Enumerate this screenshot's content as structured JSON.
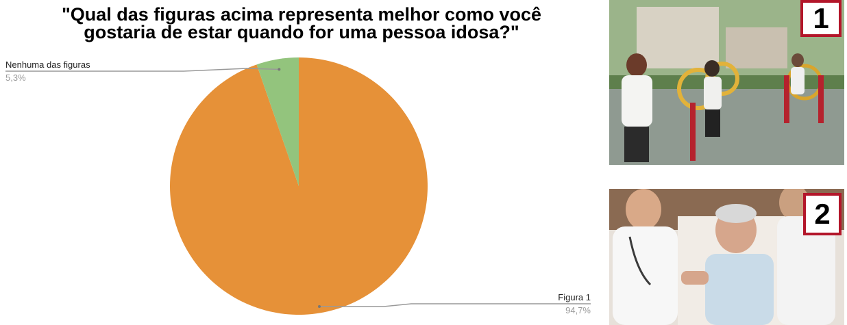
{
  "chart_data": {
    "type": "pie",
    "title": "\"Qual das figuras acima representa melhor como você gostaria de estar quando for uma pessoa idosa?\"",
    "title_lines": [
      "\"Qual das figuras acima representa melhor como você",
      "gostaria de estar quando for uma pessoa idosa?\""
    ],
    "slices": [
      {
        "label": "Figura 1",
        "value": 94.7,
        "value_label": "94,7%",
        "color": "#e69138"
      },
      {
        "label": "Nenhuma das figuras",
        "value": 5.3,
        "value_label": "5,3%",
        "color": "#93c47d"
      }
    ],
    "start": "top",
    "direction": "counterclockwise-from-figura-1"
  },
  "photos": [
    {
      "label": "1",
      "description_icon": "outdoor-exercise-photo",
      "badge_border_color": "#b3162a"
    },
    {
      "label": "2",
      "description_icon": "elderly-care-photo",
      "badge_border_color": "#b3162a"
    }
  ]
}
